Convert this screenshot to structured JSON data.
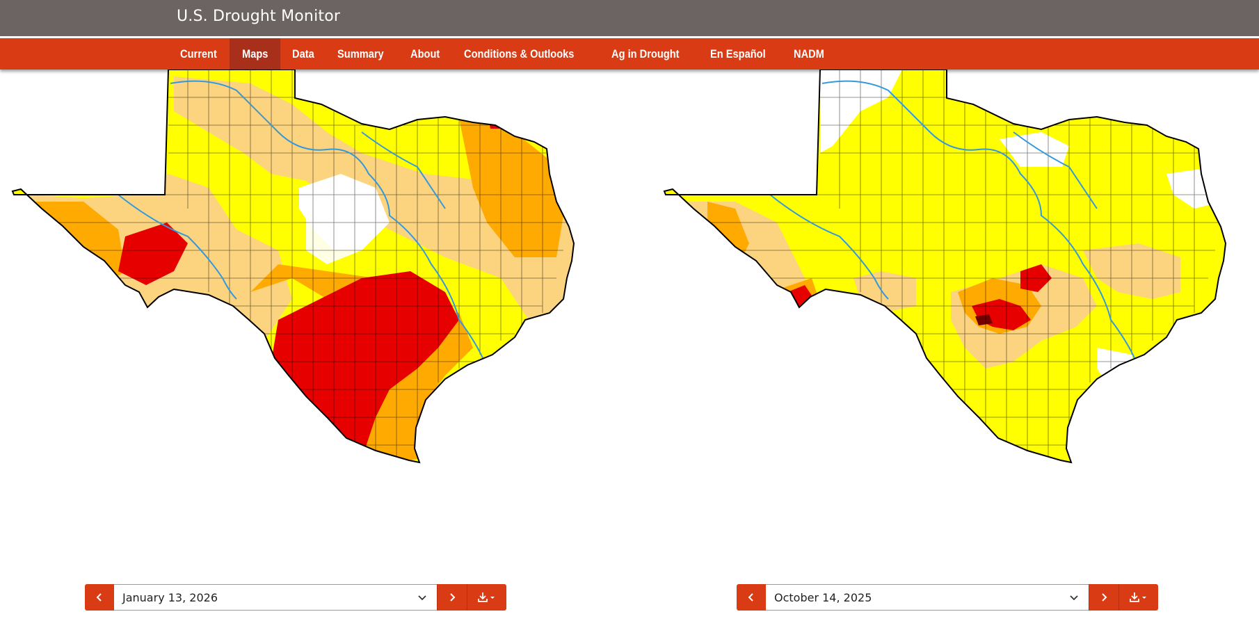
{
  "header": {
    "title": "U.S. Drought Monitor"
  },
  "nav": {
    "items": [
      {
        "label": "Current",
        "active": false
      },
      {
        "label": "Maps",
        "active": true
      },
      {
        "label": "Data",
        "active": false
      },
      {
        "label": "Summary",
        "active": false
      },
      {
        "label": "About",
        "active": false
      },
      {
        "label": "Conditions & Outlooks",
        "active": false
      },
      {
        "label": "Ag in Drought",
        "active": false
      },
      {
        "label": "En Español",
        "active": false
      },
      {
        "label": "NADM",
        "active": false
      }
    ]
  },
  "maps": {
    "left": {
      "region": "Texas",
      "date": "January 13, 2026"
    },
    "right": {
      "region": "Texas",
      "date": "October 14, 2025"
    }
  },
  "colors": {
    "header_bg": "#6b6462",
    "nav_bg": "#d93b14",
    "nav_active_bg": "#a8301a",
    "d0_abnormally_dry": "#ffff00",
    "d1_moderate": "#fcd37f",
    "d2_severe": "#ffaa00",
    "d3_extreme": "#e60000",
    "d4_exceptional": "#730000",
    "rivers": "#3399dd"
  },
  "icons": {
    "prev": "chevron-left-icon",
    "next": "chevron-right-icon",
    "dropdown": "chevron-down-icon",
    "download": "download-icon"
  }
}
